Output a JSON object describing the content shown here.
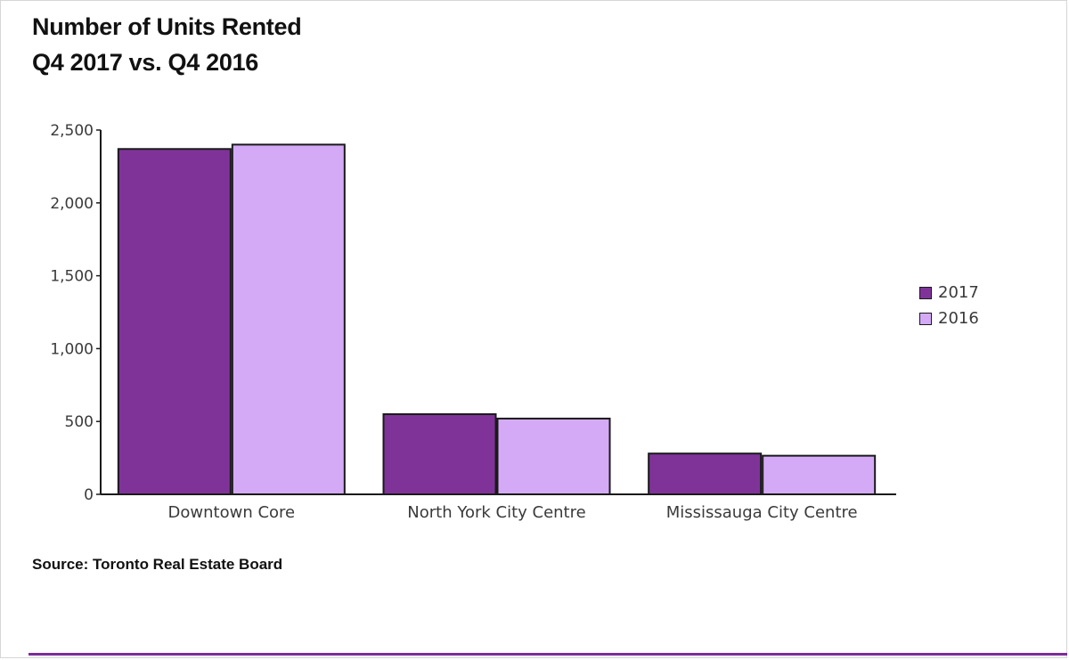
{
  "title": {
    "line1": "Number of Units Rented",
    "line2": "Q4 2017 vs. Q4 2016"
  },
  "source": "Source: Toronto Real Estate Board",
  "colors": {
    "series_2017": "#7f3399",
    "series_2016": "#d4aaf7",
    "axis": "#1a1a1a",
    "bottom_rule": "#7b2d9a"
  },
  "chart_data": {
    "type": "bar",
    "title": "Number of Units Rented Q4 2017 vs. Q4 2016",
    "categories": [
      "Downtown Core",
      "North York City Centre",
      "Mississauga City Centre"
    ],
    "series": [
      {
        "name": "2017",
        "values": [
          2370,
          550,
          280
        ]
      },
      {
        "name": "2016",
        "values": [
          2400,
          520,
          265
        ]
      }
    ],
    "xlabel": "",
    "ylabel": "",
    "ylim": [
      0,
      2500
    ],
    "yticks": [
      0,
      500,
      1000,
      1500,
      2000,
      2500
    ],
    "ytick_labels": [
      "0",
      "500",
      "1,000",
      "1,500",
      "2,000",
      "2,500"
    ],
    "grid": false,
    "legend_position": "right"
  }
}
